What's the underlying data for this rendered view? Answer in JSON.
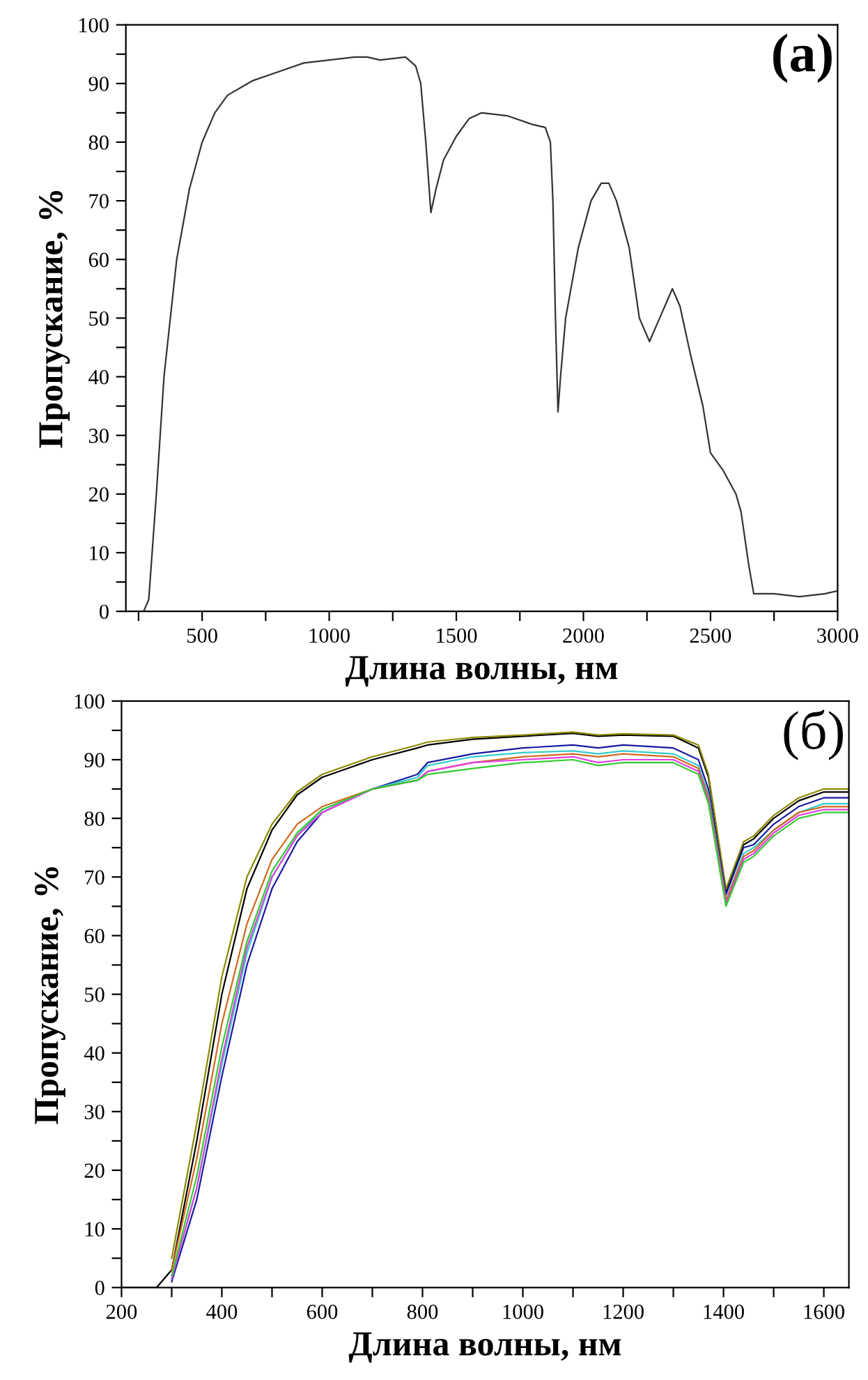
{
  "chart_data": [
    {
      "type": "line",
      "xlabel": "Длина волны, нм",
      "ylabel": "Пропускание, %",
      "annotations": [
        "(a)"
      ],
      "xlim": [
        200,
        3000
      ],
      "ylim": [
        0,
        100
      ],
      "xticks": [
        {
          "value": 250,
          "label": null
        },
        500,
        {
          "value": 750,
          "label": null
        },
        1000,
        {
          "value": 1250,
          "label": null
        },
        1500,
        {
          "value": 1750,
          "label": null
        },
        2000,
        {
          "value": 2250,
          "label": null
        },
        2500,
        {
          "value": 2750,
          "label": null
        },
        3000
      ],
      "yticks": [
        0,
        {
          "value": 5,
          "label": null
        },
        10,
        {
          "value": 15,
          "label": null
        },
        20,
        {
          "value": 25,
          "label": null
        },
        30,
        {
          "value": 35,
          "label": null
        },
        40,
        {
          "value": 45,
          "label": null
        },
        50,
        {
          "value": 55,
          "label": null
        },
        60,
        {
          "value": 65,
          "label": null
        },
        70,
        {
          "value": 75,
          "label": null
        },
        80,
        {
          "value": 85,
          "label": null
        },
        90,
        {
          "value": 95,
          "label": null
        },
        100
      ],
      "grid": false,
      "legend": false,
      "x": [
        270,
        290,
        320,
        350,
        400,
        450,
        500,
        550,
        600,
        700,
        800,
        900,
        1000,
        1100,
        1150,
        1200,
        1300,
        1340,
        1360,
        1380,
        1400,
        1420,
        1450,
        1500,
        1550,
        1600,
        1700,
        1800,
        1850,
        1870,
        1880,
        1890,
        1900,
        1910,
        1930,
        1980,
        2030,
        2070,
        2100,
        2130,
        2180,
        2220,
        2260,
        2300,
        2350,
        2380,
        2420,
        2470,
        2500,
        2550,
        2600,
        2620,
        2650,
        2670,
        2750,
        2850,
        2950,
        3000
      ],
      "series": [
        {
          "color": "#333333",
          "values": [
            0,
            2,
            20,
            40,
            60,
            72,
            80,
            85,
            88,
            90.5,
            92,
            93.5,
            94,
            94.5,
            94.5,
            94,
            94.5,
            93,
            90,
            80,
            68,
            72,
            77,
            81,
            84,
            85,
            84.5,
            83,
            82.5,
            80,
            70,
            50,
            34,
            40,
            50,
            62,
            70,
            73,
            73,
            70,
            62,
            50,
            46,
            50,
            55,
            52,
            44,
            35,
            27,
            24,
            20,
            17,
            8,
            3,
            3,
            2.5,
            3,
            3.5
          ]
        }
      ]
    },
    {
      "type": "line",
      "xlabel": "Длина волны, нм",
      "ylabel": "Пропускание, %",
      "annotations": [
        "(б)"
      ],
      "xlim": [
        200,
        1650
      ],
      "ylim": [
        0,
        100
      ],
      "xticks": [
        200,
        {
          "value": 300,
          "label": null
        },
        400,
        {
          "value": 500,
          "label": null
        },
        600,
        {
          "value": 700,
          "label": null
        },
        800,
        {
          "value": 900,
          "label": null
        },
        1000,
        {
          "value": 1100,
          "label": null
        },
        1200,
        {
          "value": 1300,
          "label": null
        },
        1400,
        {
          "value": 1500,
          "label": null
        },
        1600
      ],
      "yticks": [
        0,
        {
          "value": 5,
          "label": null
        },
        10,
        {
          "value": 15,
          "label": null
        },
        20,
        {
          "value": 25,
          "label": null
        },
        30,
        {
          "value": 35,
          "label": null
        },
        40,
        {
          "value": 45,
          "label": null
        },
        50,
        {
          "value": 55,
          "label": null
        },
        60,
        {
          "value": 65,
          "label": null
        },
        70,
        {
          "value": 75,
          "label": null
        },
        80,
        {
          "value": 85,
          "label": null
        },
        90,
        {
          "value": 95,
          "label": null
        },
        100
      ],
      "grid": false,
      "legend": false,
      "x": [
        200,
        270,
        300,
        350,
        400,
        450,
        500,
        550,
        600,
        700,
        790,
        810,
        900,
        1000,
        1100,
        1150,
        1200,
        1300,
        1350,
        1370,
        1405,
        1440,
        1460,
        1500,
        1550,
        1600,
        1650
      ],
      "series": [
        {
          "color": "#000000",
          "values": [
            0,
            0,
            3,
            25,
            50,
            68,
            78,
            84,
            87,
            90,
            92,
            92.5,
            93.5,
            94,
            94.5,
            94,
            94.2,
            94,
            92,
            87,
            67.5,
            75.5,
            76.5,
            80,
            83,
            84.5,
            84.5
          ]
        },
        {
          "color": "#8b8b00",
          "values": [
            null,
            null,
            5,
            28,
            53,
            70,
            79,
            84.5,
            87.5,
            90.5,
            92.5,
            93,
            93.8,
            94.2,
            94.7,
            94.2,
            94.4,
            94.2,
            92.5,
            87.5,
            68,
            76,
            77,
            80.5,
            83.5,
            85,
            85
          ]
        },
        {
          "color": "#1a1aa0",
          "values": [
            null,
            null,
            1,
            15,
            36,
            55,
            68,
            76,
            81,
            85,
            87.5,
            89.5,
            91,
            92,
            92.5,
            92,
            92.5,
            92,
            90,
            85,
            67,
            75,
            75.5,
            79,
            82,
            83.5,
            83.5
          ]
        },
        {
          "color": "#33cccc",
          "values": [
            null,
            null,
            1.5,
            17,
            38,
            57,
            70,
            77,
            81.5,
            85,
            87,
            89,
            90.5,
            91.2,
            91.5,
            91,
            91.5,
            91,
            89,
            84,
            66,
            74,
            75,
            78,
            81,
            82.5,
            82.5
          ]
        },
        {
          "color": "#d2691e",
          "values": [
            null,
            null,
            3,
            22,
            45,
            62,
            73,
            79,
            82,
            85,
            86.5,
            88,
            89.5,
            90.5,
            91,
            90.5,
            91,
            90.5,
            88.5,
            83.5,
            66,
            73.5,
            74.5,
            78,
            81,
            82,
            82
          ]
        },
        {
          "color": "#e040e0",
          "values": [
            null,
            null,
            1.5,
            17,
            39,
            58,
            70,
            77,
            81,
            85,
            86.5,
            88,
            89.5,
            90,
            90.5,
            89.5,
            90,
            90,
            88,
            83,
            65.5,
            73,
            74,
            77.5,
            80.5,
            81.5,
            81.5
          ]
        },
        {
          "color": "#33cc33",
          "values": [
            null,
            null,
            2,
            19,
            41,
            59,
            71,
            77.5,
            81.5,
            85,
            86.5,
            87.5,
            88.5,
            89.5,
            90,
            89,
            89.5,
            89.5,
            87.5,
            82.5,
            65,
            72.5,
            73.5,
            77,
            80,
            81,
            81
          ]
        }
      ]
    }
  ]
}
